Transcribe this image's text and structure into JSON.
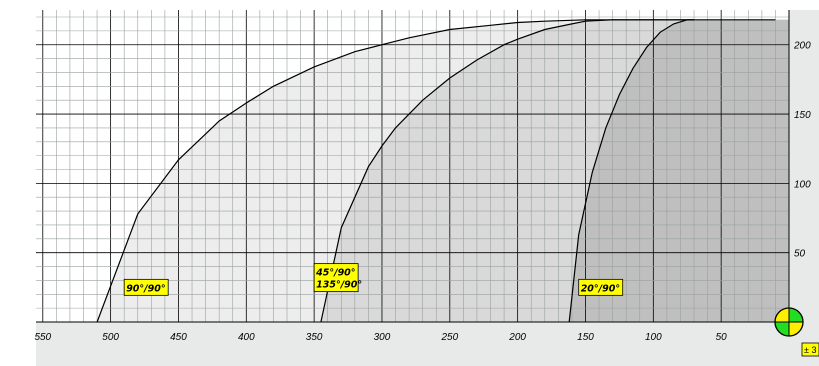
{
  "chart_data": {
    "type": "area",
    "title": "",
    "xlabel": "",
    "ylabel": "",
    "x_reversed": true,
    "xlim": [
      0,
      555
    ],
    "ylim": [
      0,
      220
    ],
    "x_ticks": [
      550,
      500,
      450,
      400,
      350,
      300,
      250,
      200,
      150,
      100,
      50
    ],
    "y_ticks": [
      50,
      100,
      150,
      200
    ],
    "grid": true,
    "series": [
      {
        "name": "90°/90°",
        "label_at": [
          490,
          25
        ],
        "x": [
          510,
          480,
          450,
          420,
          400,
          380,
          350,
          320,
          300,
          280,
          250,
          220,
          200,
          180,
          150,
          120,
          100,
          70
        ],
        "y": [
          0,
          78,
          117,
          145,
          158,
          170,
          184,
          195,
          200,
          205,
          211,
          214,
          216,
          217,
          218,
          218,
          218,
          218
        ]
      },
      {
        "name": "45°/90°",
        "name2": "135°/90°",
        "label_at": [
          350,
          32
        ],
        "x": [
          345,
          330,
          310,
          300,
          290,
          270,
          250,
          230,
          210,
          200,
          180,
          160,
          150,
          130,
          100,
          70
        ],
        "y": [
          0,
          68,
          112,
          127,
          140,
          160,
          176,
          189,
          200,
          204,
          211,
          215,
          217,
          218,
          218,
          218
        ]
      },
      {
        "name": "20°/90°",
        "label_at": [
          155,
          25
        ],
        "x": [
          162,
          155,
          145,
          135,
          125,
          115,
          105,
          95,
          85,
          75,
          60,
          50,
          30,
          10
        ],
        "y": [
          0,
          63,
          108,
          140,
          164,
          183,
          198,
          209,
          215,
          218,
          218,
          218,
          218,
          218
        ]
      }
    ]
  },
  "badge": {
    "text": "± 3"
  },
  "colors": {
    "background": "#ffffff",
    "plot_bg": "#ffffff",
    "axis_bg": "#e8eaea",
    "grid_minor": "#9aa0a0",
    "grid_major": "#000000",
    "region_1": "#ededed",
    "region_2": "#d9d9d9",
    "region_3": "#bfbfbf",
    "label_fill": "#ffff00",
    "compass_green": "#22dd22",
    "compass_yellow": "#ffee00"
  },
  "icons": {
    "compass": "compass-icon"
  }
}
